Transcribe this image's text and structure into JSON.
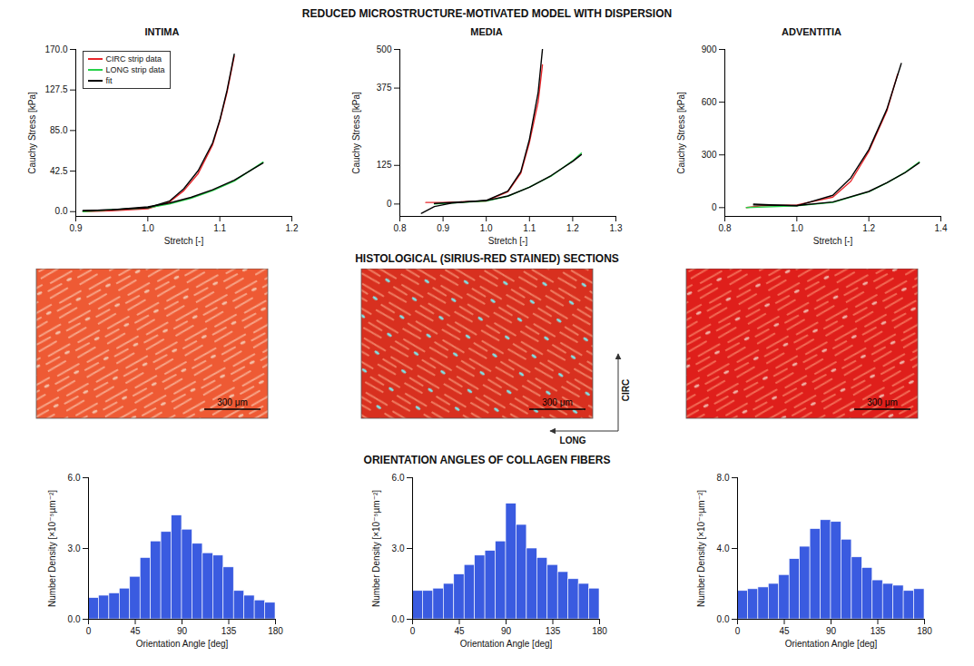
{
  "title": "REDUCED MICROSTRUCTURE-MOTIVATED MODEL WITH DISPERSION",
  "chart_data": [
    {
      "type": "line",
      "title": "INTIMA",
      "x_label": "Stretch [-]",
      "y_label": "Cauchy Stress [kPa]",
      "xlim": [
        0.9,
        1.2
      ],
      "xticks": [
        0.9,
        {
          "value": 1,
          "label": "1.0"
        },
        1.1,
        1.2
      ],
      "ylim": [
        -5,
        170
      ],
      "yticks": [
        {
          "value": 0,
          "label": "0.0"
        },
        42.5,
        {
          "value": 85,
          "label": "85.0"
        },
        127.5,
        {
          "value": 170,
          "label": "170.0"
        }
      ],
      "legend": "top-left",
      "series": [
        {
          "name": "CIRC strip data",
          "color": "#e8262b",
          "x": [
            0.91,
            0.95,
            1.0,
            1.03,
            1.05,
            1.07,
            1.09,
            1.1,
            1.11,
            1.12
          ],
          "values": [
            0,
            1,
            3,
            10,
            22,
            40,
            70,
            95,
            125,
            163
          ]
        },
        {
          "name": "LONG strip data",
          "color": "#27d14a",
          "x": [
            0.91,
            0.95,
            1.0,
            1.03,
            1.06,
            1.09,
            1.12,
            1.14,
            1.16
          ],
          "values": [
            0,
            2,
            4,
            8,
            14,
            22,
            32,
            42,
            52
          ]
        },
        {
          "name": "fit",
          "color": "#000000",
          "x": [
            0.91,
            0.95,
            1.0,
            1.03,
            1.05,
            1.07,
            1.09,
            1.1,
            1.11,
            1.12
          ],
          "values": [
            1,
            2,
            4,
            11,
            24,
            43,
            72,
            96,
            127,
            165
          ]
        },
        {
          "name": "fit",
          "color": "#000000",
          "x": [
            0.91,
            0.95,
            1.0,
            1.03,
            1.06,
            1.09,
            1.12,
            1.14,
            1.16
          ],
          "values": [
            1,
            2,
            5,
            9,
            15,
            23,
            33,
            42,
            51
          ]
        }
      ]
    },
    {
      "type": "line",
      "title": "MEDIA",
      "x_label": "Stretch [-]",
      "y_label": "Cauchy Stress [kPa]",
      "xlim": [
        0.8,
        1.3
      ],
      "xticks": [
        0.8,
        0.9,
        {
          "value": 1,
          "label": "1.0"
        },
        1.1,
        1.2,
        1.3
      ],
      "ylim": [
        -40,
        500
      ],
      "yticks": [
        0,
        125,
        375,
        500
      ],
      "series": [
        {
          "name": "CIRC strip data",
          "color": "#e8262b",
          "x": [
            0.86,
            0.9,
            1.0,
            1.05,
            1.08,
            1.1,
            1.12,
            1.13
          ],
          "values": [
            5,
            5,
            10,
            40,
            100,
            200,
            330,
            450
          ]
        },
        {
          "name": "LONG strip data",
          "color": "#27d14a",
          "x": [
            0.88,
            1.0,
            1.05,
            1.1,
            1.15,
            1.2,
            1.22
          ],
          "values": [
            0,
            10,
            25,
            55,
            90,
            140,
            165
          ]
        },
        {
          "name": "fit",
          "color": "#000000",
          "x": [
            0.85,
            0.88,
            0.92,
            1.0,
            1.05,
            1.08,
            1.1,
            1.12,
            1.13
          ],
          "values": [
            -30,
            -8,
            3,
            12,
            42,
            105,
            210,
            360,
            500
          ]
        },
        {
          "name": "fit",
          "color": "#000000",
          "x": [
            0.88,
            1.0,
            1.05,
            1.1,
            1.15,
            1.2,
            1.22
          ],
          "values": [
            2,
            11,
            26,
            54,
            92,
            138,
            160
          ]
        }
      ]
    },
    {
      "type": "line",
      "title": "ADVENTITIA",
      "x_label": "Stretch [-]",
      "y_label": "Cauchy Stress [kPa]",
      "xlim": [
        0.8,
        1.4
      ],
      "xticks": [
        0.8,
        {
          "value": 1,
          "label": "1.0"
        },
        1.2,
        1.4
      ],
      "ylim": [
        -50,
        900
      ],
      "yticks": [
        0,
        300,
        600,
        900
      ],
      "series": [
        {
          "name": "CIRC strip data",
          "color": "#e8262b",
          "x": [
            0.86,
            0.9,
            1.0,
            1.1,
            1.15,
            1.2,
            1.25,
            1.28
          ],
          "values": [
            0,
            10,
            15,
            60,
            150,
            320,
            550,
            760
          ]
        },
        {
          "name": "LONG strip data",
          "color": "#27d14a",
          "x": [
            0.86,
            1.0,
            1.1,
            1.2,
            1.25,
            1.3,
            1.34
          ],
          "values": [
            0,
            10,
            30,
            90,
            140,
            200,
            260
          ]
        },
        {
          "name": "fit",
          "color": "#000000",
          "x": [
            0.88,
            1.0,
            1.1,
            1.15,
            1.2,
            1.25,
            1.29
          ],
          "values": [
            20,
            10,
            70,
            170,
            330,
            560,
            820
          ]
        },
        {
          "name": "fit",
          "color": "#000000",
          "x": [
            0.88,
            1.0,
            1.1,
            1.2,
            1.25,
            1.3,
            1.34
          ],
          "values": [
            15,
            12,
            32,
            92,
            142,
            198,
            255
          ]
        }
      ]
    },
    {
      "type": "histogram",
      "x_label": "Orientation Angle [deg]",
      "y_label": "Number Density [×10⁻⁵µm⁻²]",
      "color": "#3a5be0",
      "bins": [
        0,
        10,
        20,
        30,
        40,
        50,
        60,
        70,
        80,
        90,
        100,
        110,
        120,
        130,
        140,
        150,
        160,
        170,
        180
      ],
      "values": [
        0.9,
        1.0,
        1.1,
        1.3,
        1.8,
        2.6,
        3.3,
        3.7,
        4.4,
        3.8,
        3.2,
        2.8,
        2.7,
        2.2,
        1.2,
        1.0,
        0.8,
        0.7
      ],
      "xlim": [
        0,
        180
      ],
      "xticks": [
        0,
        45,
        90,
        135,
        180
      ],
      "ylim": [
        0,
        6
      ],
      "yticks": [
        {
          "value": 0,
          "label": "0.0"
        },
        {
          "value": 3,
          "label": "3.0"
        },
        {
          "value": 6,
          "label": "6.0"
        }
      ]
    },
    {
      "type": "histogram",
      "x_label": "Orientation Angle [deg]",
      "y_label": "Number Density [×10⁻⁵µm⁻²]",
      "color": "#3a5be0",
      "bins": [
        0,
        10,
        20,
        30,
        40,
        50,
        60,
        70,
        80,
        90,
        100,
        110,
        120,
        130,
        140,
        150,
        160,
        170,
        180
      ],
      "values": [
        1.2,
        1.2,
        1.3,
        1.5,
        1.9,
        2.3,
        2.7,
        2.9,
        3.3,
        4.9,
        4.0,
        3.0,
        2.6,
        2.3,
        2.0,
        1.7,
        1.5,
        1.3
      ],
      "xlim": [
        0,
        180
      ],
      "xticks": [
        0,
        45,
        90,
        135,
        180
      ],
      "ylim": [
        0,
        6
      ],
      "yticks": [
        {
          "value": 0,
          "label": "0.0"
        },
        {
          "value": 3,
          "label": "3.0"
        },
        {
          "value": 6,
          "label": "6.0"
        }
      ]
    },
    {
      "type": "histogram",
      "x_label": "Orientation Angle [deg]",
      "y_label": "Number Density [×10⁻⁵µm⁻²]",
      "color": "#3a5be0",
      "bins": [
        0,
        10,
        20,
        30,
        40,
        50,
        60,
        70,
        80,
        90,
        100,
        110,
        120,
        130,
        140,
        150,
        160,
        170,
        180
      ],
      "values": [
        1.6,
        1.7,
        1.8,
        2.0,
        2.5,
        3.4,
        4.1,
        5.1,
        5.6,
        5.5,
        4.5,
        3.5,
        2.9,
        2.2,
        2.0,
        1.9,
        1.6,
        1.7
      ],
      "xlim": [
        0,
        180
      ],
      "xticks": [
        0,
        45,
        90,
        135,
        180
      ],
      "ylim": [
        0,
        8
      ],
      "yticks": [
        {
          "value": 0,
          "label": "0.0"
        },
        {
          "value": 4,
          "label": "4.0"
        },
        {
          "value": 8,
          "label": "8.0"
        }
      ]
    }
  ],
  "histology": {
    "title": "HISTOLOGICAL (SIRIUS-RED STAINED) SECTIONS",
    "panels": [
      {
        "scale_bar": "300 μm"
      },
      {
        "scale_bar": "300 μm",
        "directions": {
          "horizontal": "LONG",
          "vertical": "CIRC"
        }
      },
      {
        "scale_bar": "300 μm"
      }
    ]
  },
  "histogram_title": "ORIENTATION ANGLES OF COLLAGEN FIBERS"
}
